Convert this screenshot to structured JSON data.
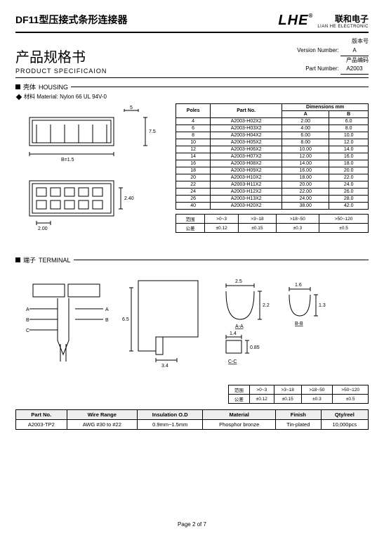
{
  "header": {
    "product_title": "DF11型压接式条形连接器",
    "brand_logo": "LHE",
    "brand_cn": "联和电子",
    "brand_en": "LIAN HE ELECTRONIC"
  },
  "spec": {
    "title_cn": "产品规格书",
    "title_en": "PRODUCT SPECIFICAION",
    "version_label_cn": "版本号",
    "version_label_en": "Version Number:",
    "version_value": "A",
    "part_label_cn": "产品编码",
    "part_label_en": "Part Number:",
    "part_value": "A2003"
  },
  "housing": {
    "section_cn": "壳体",
    "section_en": "HOUSING",
    "material_label": "材料 Material: Nylon 66 UL 94V-0",
    "dim_b": "5",
    "dim_h": "7.5",
    "dim_bl": "B=1.5",
    "dim_24": "2.40",
    "dim_20": "2.00",
    "table": {
      "h_poles": "Poles",
      "h_part": "Part No.",
      "h_dims": "Dimensions mm",
      "h_a": "A",
      "h_b": "B",
      "rows": [
        {
          "p": "4",
          "n": "A2003-H02X2",
          "a": "2.00",
          "b": "6.0"
        },
        {
          "p": "6",
          "n": "A2003-H03X2",
          "a": "4.00",
          "b": "8.0"
        },
        {
          "p": "8",
          "n": "A2003-H04X2",
          "a": "6.00",
          "b": "10.0"
        },
        {
          "p": "10",
          "n": "A2003-H05X2",
          "a": "8.00",
          "b": "12.0"
        },
        {
          "p": "12",
          "n": "A2003-H06X2",
          "a": "10.00",
          "b": "14.0"
        },
        {
          "p": "14",
          "n": "A2003-H07X2",
          "a": "12.00",
          "b": "16.0"
        },
        {
          "p": "16",
          "n": "A2003-H08X2",
          "a": "14.00",
          "b": "18.0"
        },
        {
          "p": "18",
          "n": "A2003-H09X2",
          "a": "16.00",
          "b": "20.0"
        },
        {
          "p": "20",
          "n": "A2003-H10X2",
          "a": "18.00",
          "b": "22.0"
        },
        {
          "p": "22",
          "n": "A2003-H11X2",
          "a": "20.00",
          "b": "24.0"
        },
        {
          "p": "24",
          "n": "A2003-H12X2",
          "a": "22.00",
          "b": "26.0"
        },
        {
          "p": "26",
          "n": "A2003-H13X2",
          "a": "24.00",
          "b": "28.0"
        },
        {
          "p": "40",
          "n": "A2003-H20X2",
          "a": "38.00",
          "b": "42.0"
        }
      ]
    },
    "tol": {
      "r1": [
        "范围",
        ">0~3",
        ">3~18",
        ">18~50",
        ">50~120"
      ],
      "r2": [
        "公差",
        "±0.12",
        "±0.15",
        "±0.3",
        "±0.5"
      ]
    }
  },
  "terminal": {
    "section_cn": "端子",
    "section_en": "TERMINAL",
    "dims": {
      "aa": "A-A",
      "bb": "B-B",
      "cc": "C-C",
      "d25": "2.5",
      "d22": "2.2",
      "d16": "1.6",
      "d13": "1.3",
      "d14": "1.4",
      "d085": "0.85",
      "d65": "6.5",
      "d34": "3.4",
      "la": "A",
      "lb": "B",
      "lc": "C"
    },
    "tol": {
      "r1": [
        "范围",
        ">0~3",
        ">3~18",
        ">18~50",
        ">50~120"
      ],
      "r2": [
        "公差",
        "±0.12",
        "±0.15",
        "±0.3",
        "±0.5"
      ]
    },
    "wire": {
      "headers": [
        "Part No.",
        "Wire Range",
        "Insulation O.D",
        "Material",
        "Finish",
        "Qty/reel"
      ],
      "row": [
        "A2003-TP2",
        "AWG #30 to #22",
        "0.9mm~1.5mm",
        "Phosphor bronze",
        "Tin-plated",
        "10,000pcs"
      ]
    }
  },
  "footer": "Page 2 of 7"
}
